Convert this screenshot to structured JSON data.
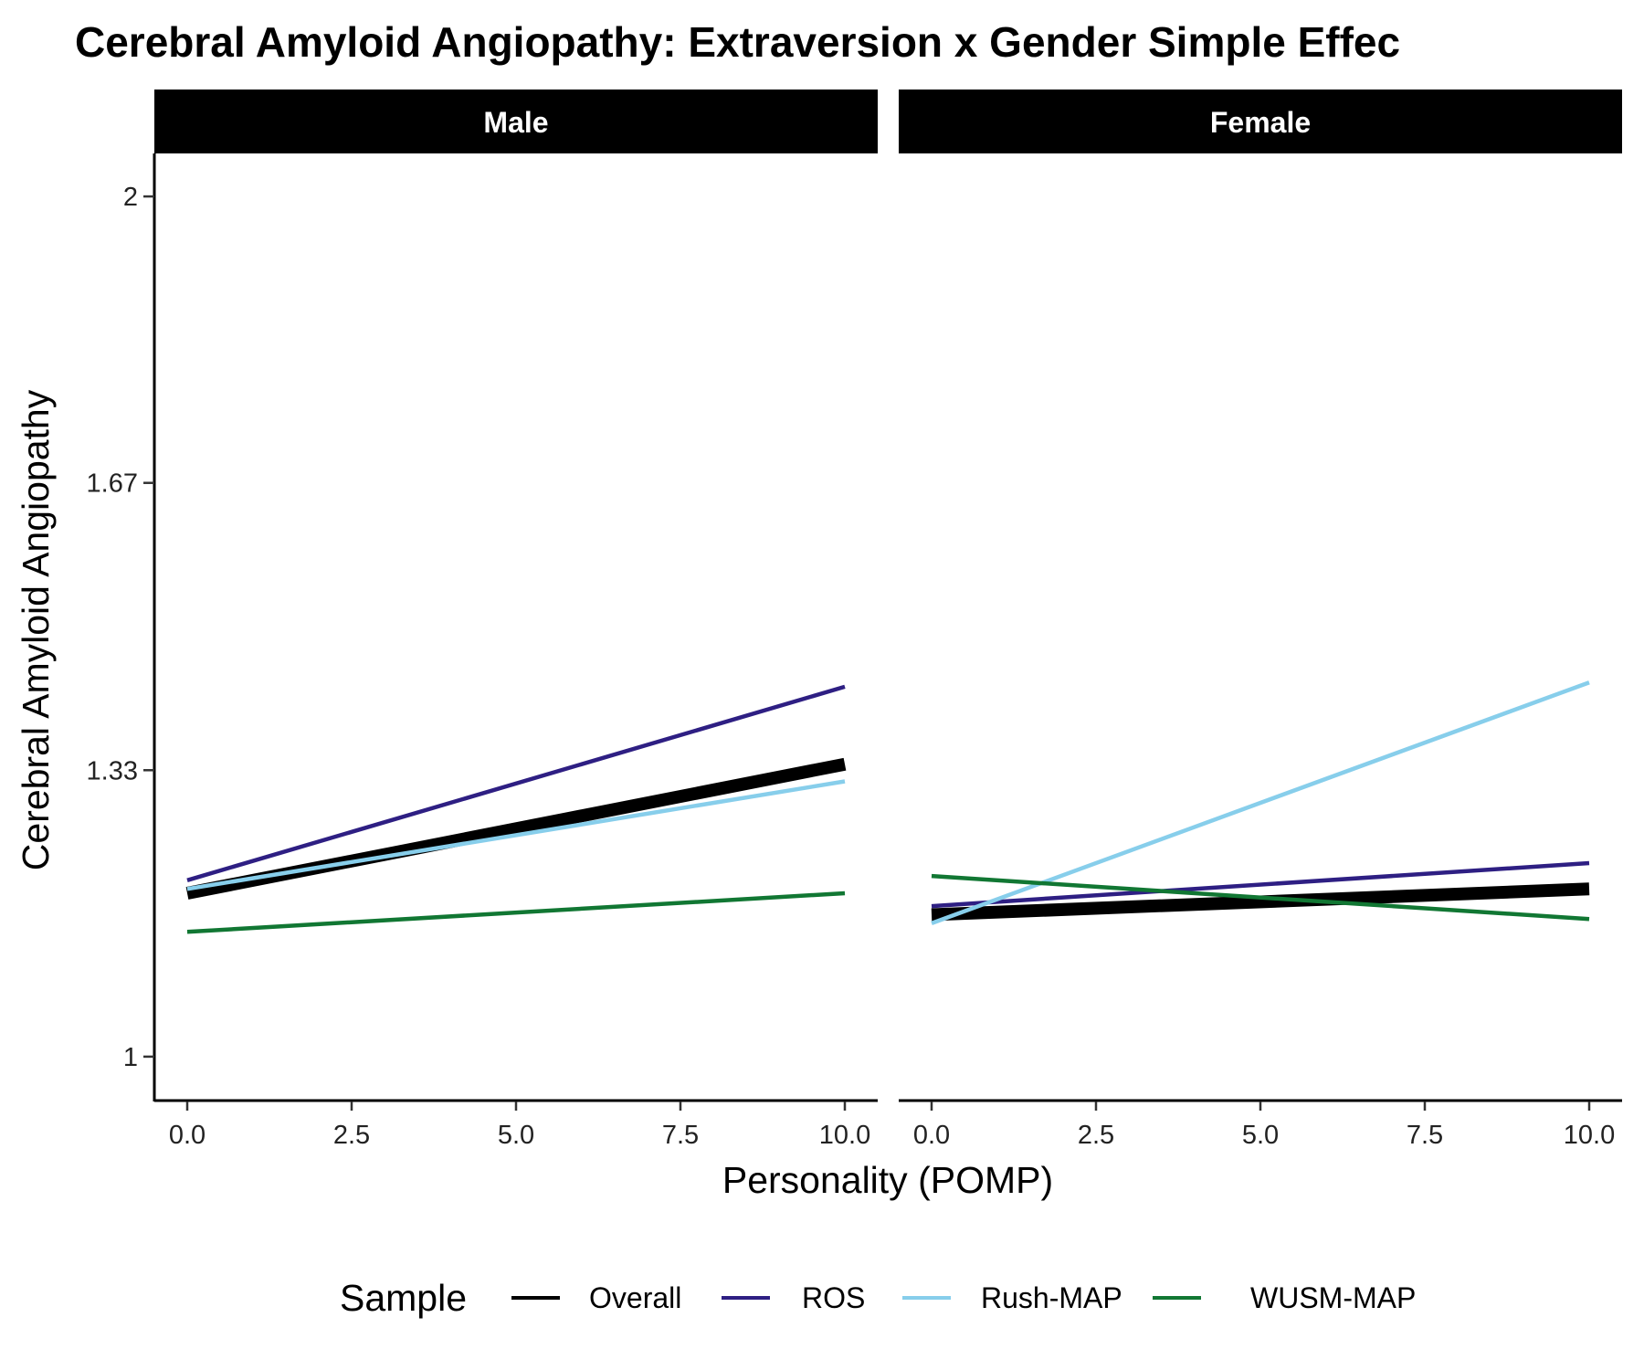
{
  "chart_data": {
    "type": "line",
    "title": "Cerebral Amyloid Angiopathy: Extraversion x Gender Simple Effec",
    "xlabel": "Personality (POMP)",
    "ylabel": "Cerebral Amyloid Angiopathy",
    "xlim": [
      -0.5,
      10.5
    ],
    "ylim": [
      0.95,
      2.05
    ],
    "x_ticks": [
      {
        "value": 0,
        "label": "0.0"
      },
      {
        "value": 2.5,
        "label": "2.5"
      },
      {
        "value": 5,
        "label": "5.0"
      },
      {
        "value": 7.5,
        "label": "7.5"
      },
      {
        "value": 10,
        "label": "10.0"
      }
    ],
    "y_ticks": [
      {
        "value": 1.0,
        "label": "1"
      },
      {
        "value": 1.333,
        "label": "1.33"
      },
      {
        "value": 1.667,
        "label": "1.67"
      },
      {
        "value": 2.0,
        "label": "2"
      }
    ],
    "legend": {
      "title": "Sample",
      "position": "bottom"
    },
    "series_styles": [
      {
        "name": "Overall",
        "color": "#000000",
        "width": 14
      },
      {
        "name": "ROS",
        "color": "#2e1f83",
        "width": 4.5
      },
      {
        "name": "Rush-MAP",
        "color": "#87ceeb",
        "width": 4.5
      },
      {
        "name": "WUSM-MAP",
        "color": "#117733",
        "width": 4.5
      }
    ],
    "panels": [
      {
        "label": "Male",
        "series": [
          {
            "name": "Overall",
            "x": [
              0,
              10
            ],
            "y": [
              1.19,
              1.34
            ]
          },
          {
            "name": "ROS",
            "x": [
              0,
              10
            ],
            "y": [
              1.205,
              1.43
            ]
          },
          {
            "name": "Rush-MAP",
            "x": [
              0,
              10
            ],
            "y": [
              1.195,
              1.32
            ]
          },
          {
            "name": "WUSM-MAP",
            "x": [
              0,
              10
            ],
            "y": [
              1.145,
              1.19
            ]
          }
        ]
      },
      {
        "label": "Female",
        "series": [
          {
            "name": "Overall",
            "x": [
              0,
              10
            ],
            "y": [
              1.165,
              1.195
            ]
          },
          {
            "name": "ROS",
            "x": [
              0,
              10
            ],
            "y": [
              1.175,
              1.225
            ]
          },
          {
            "name": "Rush-MAP",
            "x": [
              0,
              10
            ],
            "y": [
              1.155,
              1.435
            ]
          },
          {
            "name": "WUSM-MAP",
            "x": [
              0,
              10
            ],
            "y": [
              1.21,
              1.16
            ]
          }
        ]
      }
    ]
  }
}
